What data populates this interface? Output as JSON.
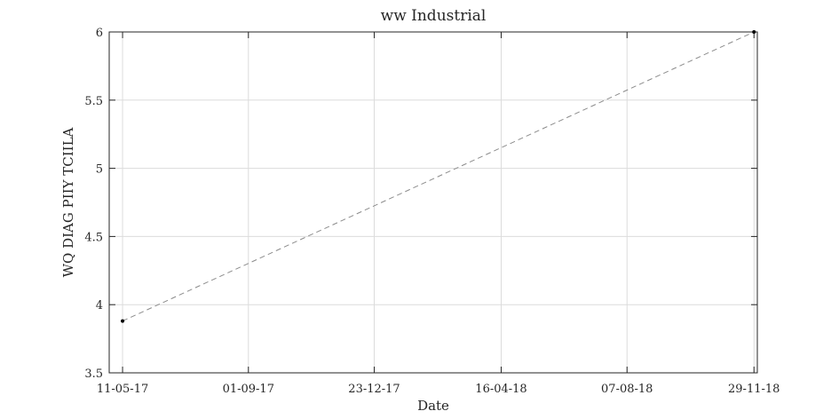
{
  "chart_data": {
    "type": "line",
    "title": "ww Industrial",
    "xlabel": "Date",
    "ylabel": "WQ DIAG PIIY TCIILA",
    "x_ticks": [
      {
        "label": "11-05-17",
        "date": "2017-05-11"
      },
      {
        "label": "01-09-17",
        "date": "2017-09-01"
      },
      {
        "label": "23-12-17",
        "date": "2017-12-23"
      },
      {
        "label": "16-04-18",
        "date": "2018-04-16"
      },
      {
        "label": "07-08-18",
        "date": "2018-08-07"
      },
      {
        "label": "29-11-18",
        "date": "2018-11-29"
      }
    ],
    "xlim": [
      "2017-04-29",
      "2018-12-02"
    ],
    "y_ticks": [
      3.5,
      4,
      4.5,
      5,
      5.5,
      6
    ],
    "ylim": [
      3.5,
      6
    ],
    "grid": true,
    "series": [
      {
        "points": [
          {
            "x": "2017-05-11",
            "y": 3.88
          },
          {
            "x": "2018-11-29",
            "y": 6.0
          }
        ],
        "line_style": "dashed",
        "line_color": "#8c8c8c",
        "marker_color": "#000000"
      }
    ]
  }
}
